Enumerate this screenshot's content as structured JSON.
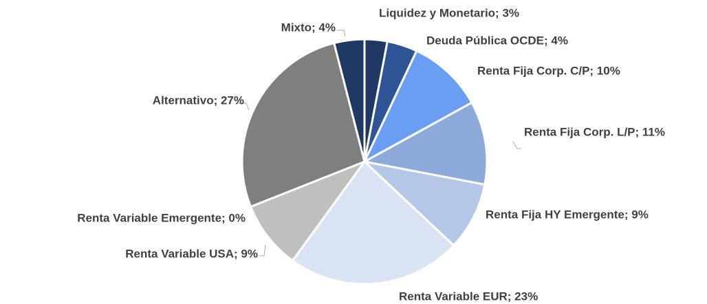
{
  "chart_data": {
    "type": "pie",
    "labels": [
      "Liquidez y Monetario; 3%",
      "Deuda Pública OCDE; 4%",
      "Renta Fija Corp. C/P; 10%",
      "Renta Fija Corp. L/P; 11%",
      "Renta Fija HY Emergente; 9%",
      "Renta Variable EUR; 23%",
      "Renta Variable Emergente; 0%",
      "Renta Variable USA; 9%",
      "Alternativo; 27%",
      "Mixto; 4%"
    ],
    "values": [
      3,
      4,
      10,
      11,
      9,
      23,
      0,
      9,
      27,
      4
    ],
    "colors": [
      "#1f3864",
      "#2f5597",
      "#6a9ef2",
      "#8eaadb",
      "#b4c7e7",
      "#dae3f3",
      "#a5a5a5",
      "#bfbfbf",
      "#7f7f7f",
      "#203864"
    ]
  }
}
